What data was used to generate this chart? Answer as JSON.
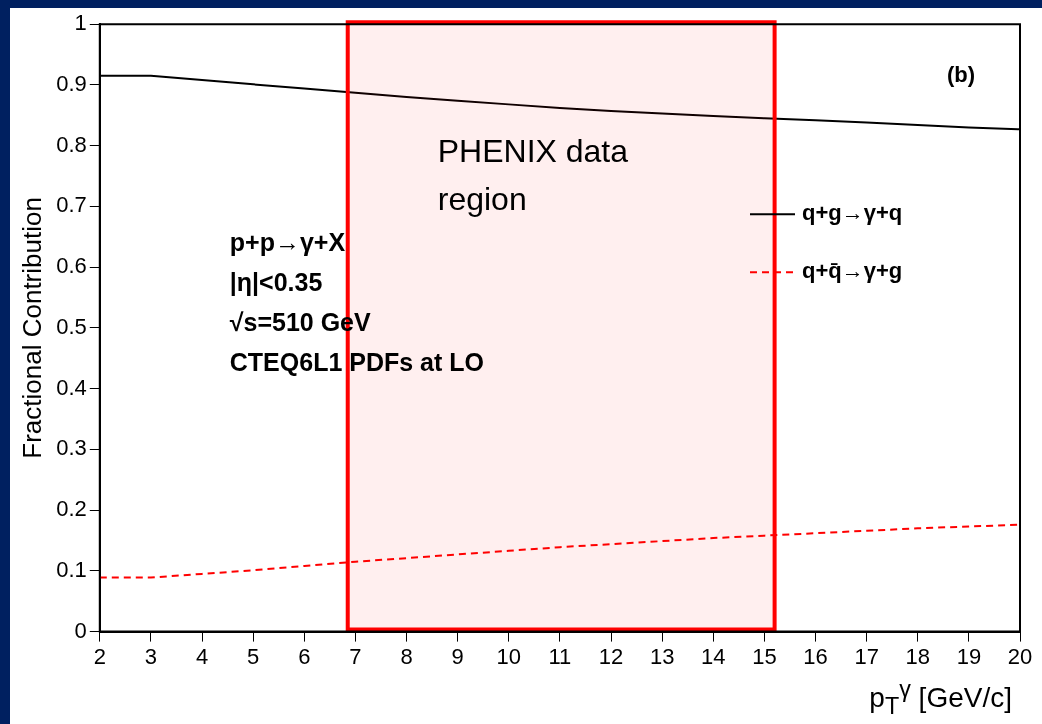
{
  "chart_data": {
    "type": "line",
    "xlabel": "p$_{T}$$^{γ}$ [GeV/c]",
    "ylabel": "Fractional Contribution",
    "x": [
      2,
      3,
      4,
      5,
      6,
      7,
      8,
      9,
      10,
      11,
      12,
      13,
      14,
      15,
      16,
      17,
      18,
      19,
      20
    ],
    "series": [
      {
        "name": "q+g→γ+q",
        "color": "#000000",
        "line_style": "solid",
        "values": [
          0.915,
          0.915,
          0.908,
          0.901,
          0.894,
          0.887,
          0.88,
          0.874,
          0.868,
          0.862,
          0.857,
          0.853,
          0.849,
          0.845,
          0.842,
          0.838,
          0.834,
          0.83,
          0.827
        ]
      },
      {
        "name": "q+q̄→γ+g",
        "color": "#ff0000",
        "line_style": "dashed",
        "values": [
          0.089,
          0.089,
          0.095,
          0.101,
          0.108,
          0.115,
          0.121,
          0.127,
          0.133,
          0.139,
          0.144,
          0.149,
          0.154,
          0.158,
          0.162,
          0.166,
          0.17,
          0.173,
          0.176
        ]
      }
    ],
    "xlim": [
      2,
      20
    ],
    "xticks": [
      2,
      3,
      4,
      5,
      6,
      7,
      8,
      9,
      10,
      11,
      12,
      13,
      14,
      15,
      16,
      17,
      18,
      19,
      20
    ],
    "ylim": [
      0,
      1
    ],
    "yticks": [
      0,
      0.1,
      0.2,
      0.3,
      0.4,
      0.5,
      0.6,
      0.7,
      0.8,
      0.9,
      1
    ],
    "grid": false,
    "legend": "right",
    "marker": "none",
    "bands": [
      {
        "axis": "x",
        "from": 6.85,
        "to": 15.2,
        "label": "PHENIX data region",
        "color": "#ff0000"
      }
    ],
    "annotations": [
      "(b)",
      "p+p→γ+X",
      "|η|<0.35",
      "√s=510 GeV",
      "CTEQ6L1 PDFs at LO"
    ]
  }
}
